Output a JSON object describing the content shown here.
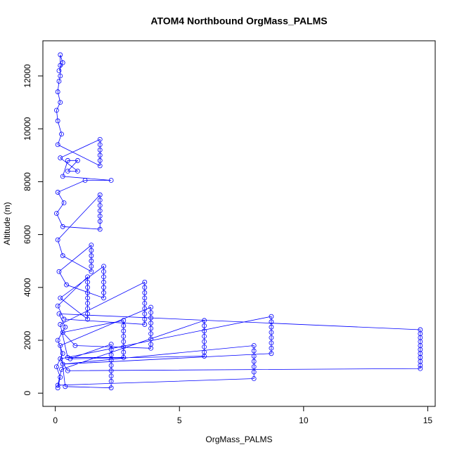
{
  "chart_data": {
    "type": "scatter",
    "title": "ATOM4 Northbound OrgMass_PALMS",
    "x_label": "OrgMass_PALMS",
    "y_label": "Altitude (m)",
    "xlim": [
      -0.5,
      15.3
    ],
    "ylim": [
      -500,
      13330
    ],
    "xticks": [
      0,
      5,
      10,
      15
    ],
    "yticks": [
      0,
      2000,
      4000,
      6000,
      8000,
      10000,
      12000
    ],
    "lines": true,
    "series": [
      {
        "color": "#0000ff",
        "x": [
          0.1,
          0.2,
          0.05,
          0.3,
          0.1,
          0.4,
          0.15,
          14.7,
          14.7,
          14.7,
          14.7,
          14.7,
          14.7,
          14.7,
          14.7,
          14.7,
          14.7,
          14.7,
          0.5,
          0.2,
          8.7,
          8.7,
          8.7,
          8.7,
          8.7,
          8.7,
          8.7,
          8.7,
          0.3,
          8,
          8,
          8,
          8,
          8,
          8,
          8,
          0.1,
          0.25,
          6,
          6,
          6,
          6,
          6,
          6,
          6,
          6,
          0.6,
          2.25,
          2.25,
          2.25,
          2.25,
          2.25,
          2.25,
          2.25,
          2.25,
          2.25,
          0.4,
          0.2,
          3.85,
          3.85,
          3.85,
          3.85,
          3.85,
          3.85,
          3.85,
          3.85,
          3.85,
          0.8,
          0.3,
          2.75,
          2.75,
          2.75,
          2.75,
          2.75,
          2.75,
          2.75,
          2.75,
          0.5,
          0.2,
          3.6,
          3.6,
          3.6,
          3.6,
          3.6,
          3.6,
          3.6,
          3.6,
          3.6,
          0.35,
          0.1,
          1.3,
          1.3,
          1.3,
          1.3,
          1.3,
          1.3,
          1.3,
          1.3,
          1.3,
          0.2,
          1.95,
          1.95,
          1.95,
          1.95,
          1.95,
          1.95,
          1.95,
          0.45,
          0.15,
          1.45,
          1.45,
          1.45,
          1.45,
          1.45,
          1.45,
          0.3,
          0.1,
          1.8,
          1.8,
          1.8,
          1.8,
          1.8,
          1.8,
          1.8,
          0.3,
          0.05,
          0.35,
          0.1,
          1.2,
          2.25,
          0.3,
          0.5,
          0.9,
          0.5,
          0.9,
          0.2,
          1.8,
          1.8,
          1.8,
          1.8,
          1.8,
          1.8,
          0.1,
          0.25,
          0.1,
          0.05,
          0.2,
          0.1,
          0.15,
          0.2,
          0.2,
          0.2,
          0.3,
          0.15
        ],
        "y": [
          200,
          600,
          1000,
          1500,
          2000,
          2500,
          3000,
          2400,
          2250,
          2100,
          1950,
          1800,
          1650,
          1500,
          1350,
          1200,
          1050,
          930,
          850,
          1300,
          2900,
          2700,
          2500,
          2300,
          2100,
          1900,
          1700,
          1500,
          1100,
          1800,
          1600,
          1400,
          1200,
          1000,
          800,
          550,
          300,
          900,
          2750,
          2550,
          2350,
          2150,
          1950,
          1750,
          1550,
          1400,
          1300,
          1850,
          1650,
          1450,
          1250,
          1050,
          850,
          650,
          450,
          200,
          250,
          1800,
          3250,
          3050,
          2850,
          2650,
          2450,
          2250,
          2050,
          1850,
          1700,
          1800,
          2300,
          2750,
          2550,
          2350,
          2150,
          1950,
          1750,
          1550,
          1350,
          1350,
          2600,
          4200,
          4000,
          3800,
          3600,
          3400,
          3200,
          3000,
          2800,
          2600,
          2800,
          3300,
          4400,
          4200,
          4000,
          3800,
          3600,
          3400,
          3200,
          3000,
          2800,
          3600,
          4800,
          4600,
          4400,
          4200,
          4000,
          3800,
          3600,
          4100,
          4600,
          5600,
          5400,
          5200,
          5000,
          4800,
          4600,
          5200,
          5800,
          7500,
          7300,
          7100,
          6900,
          6700,
          6500,
          6200,
          6300,
          6800,
          7200,
          7600,
          8050,
          8050,
          8200,
          8800,
          8800,
          8400,
          8400,
          8900,
          9600,
          9400,
          9200,
          9000,
          8800,
          8600,
          9400,
          9800,
          10300,
          10700,
          11000,
          11400,
          11800,
          12000,
          12400,
          12800,
          12500,
          12200
        ]
      }
    ]
  }
}
